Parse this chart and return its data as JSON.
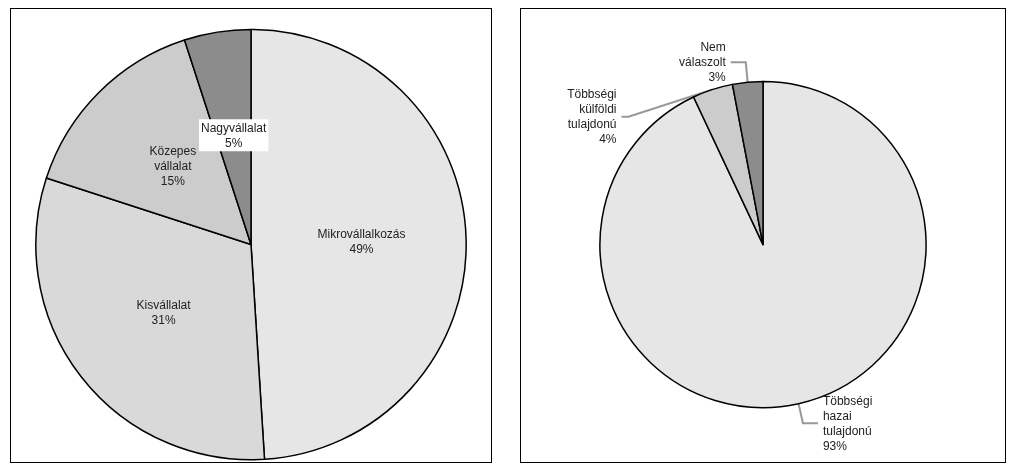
{
  "chart_data": [
    {
      "type": "pie",
      "categories": [
        "Mikrovállalkozás",
        "Kisvállalat",
        "Közepes vállalat",
        "Nagyvállalat"
      ],
      "values": [
        49,
        31,
        15,
        5
      ],
      "value_labels": [
        "49%",
        "31%",
        "15%",
        "5%"
      ],
      "colors": [
        "#e6e6e6",
        "#d9d9d9",
        "#cccccc",
        "#8c8c8c"
      ]
    },
    {
      "type": "pie",
      "categories": [
        "Többségi hazai tulajdonú",
        "Többségi külföldi tulajdonú",
        "Nem válaszolt"
      ],
      "values": [
        93,
        4,
        3
      ],
      "value_labels": [
        "93%",
        "4%",
        "3%"
      ],
      "colors": [
        "#e6e6e6",
        "#cccccc",
        "#8c8c8c"
      ]
    }
  ]
}
